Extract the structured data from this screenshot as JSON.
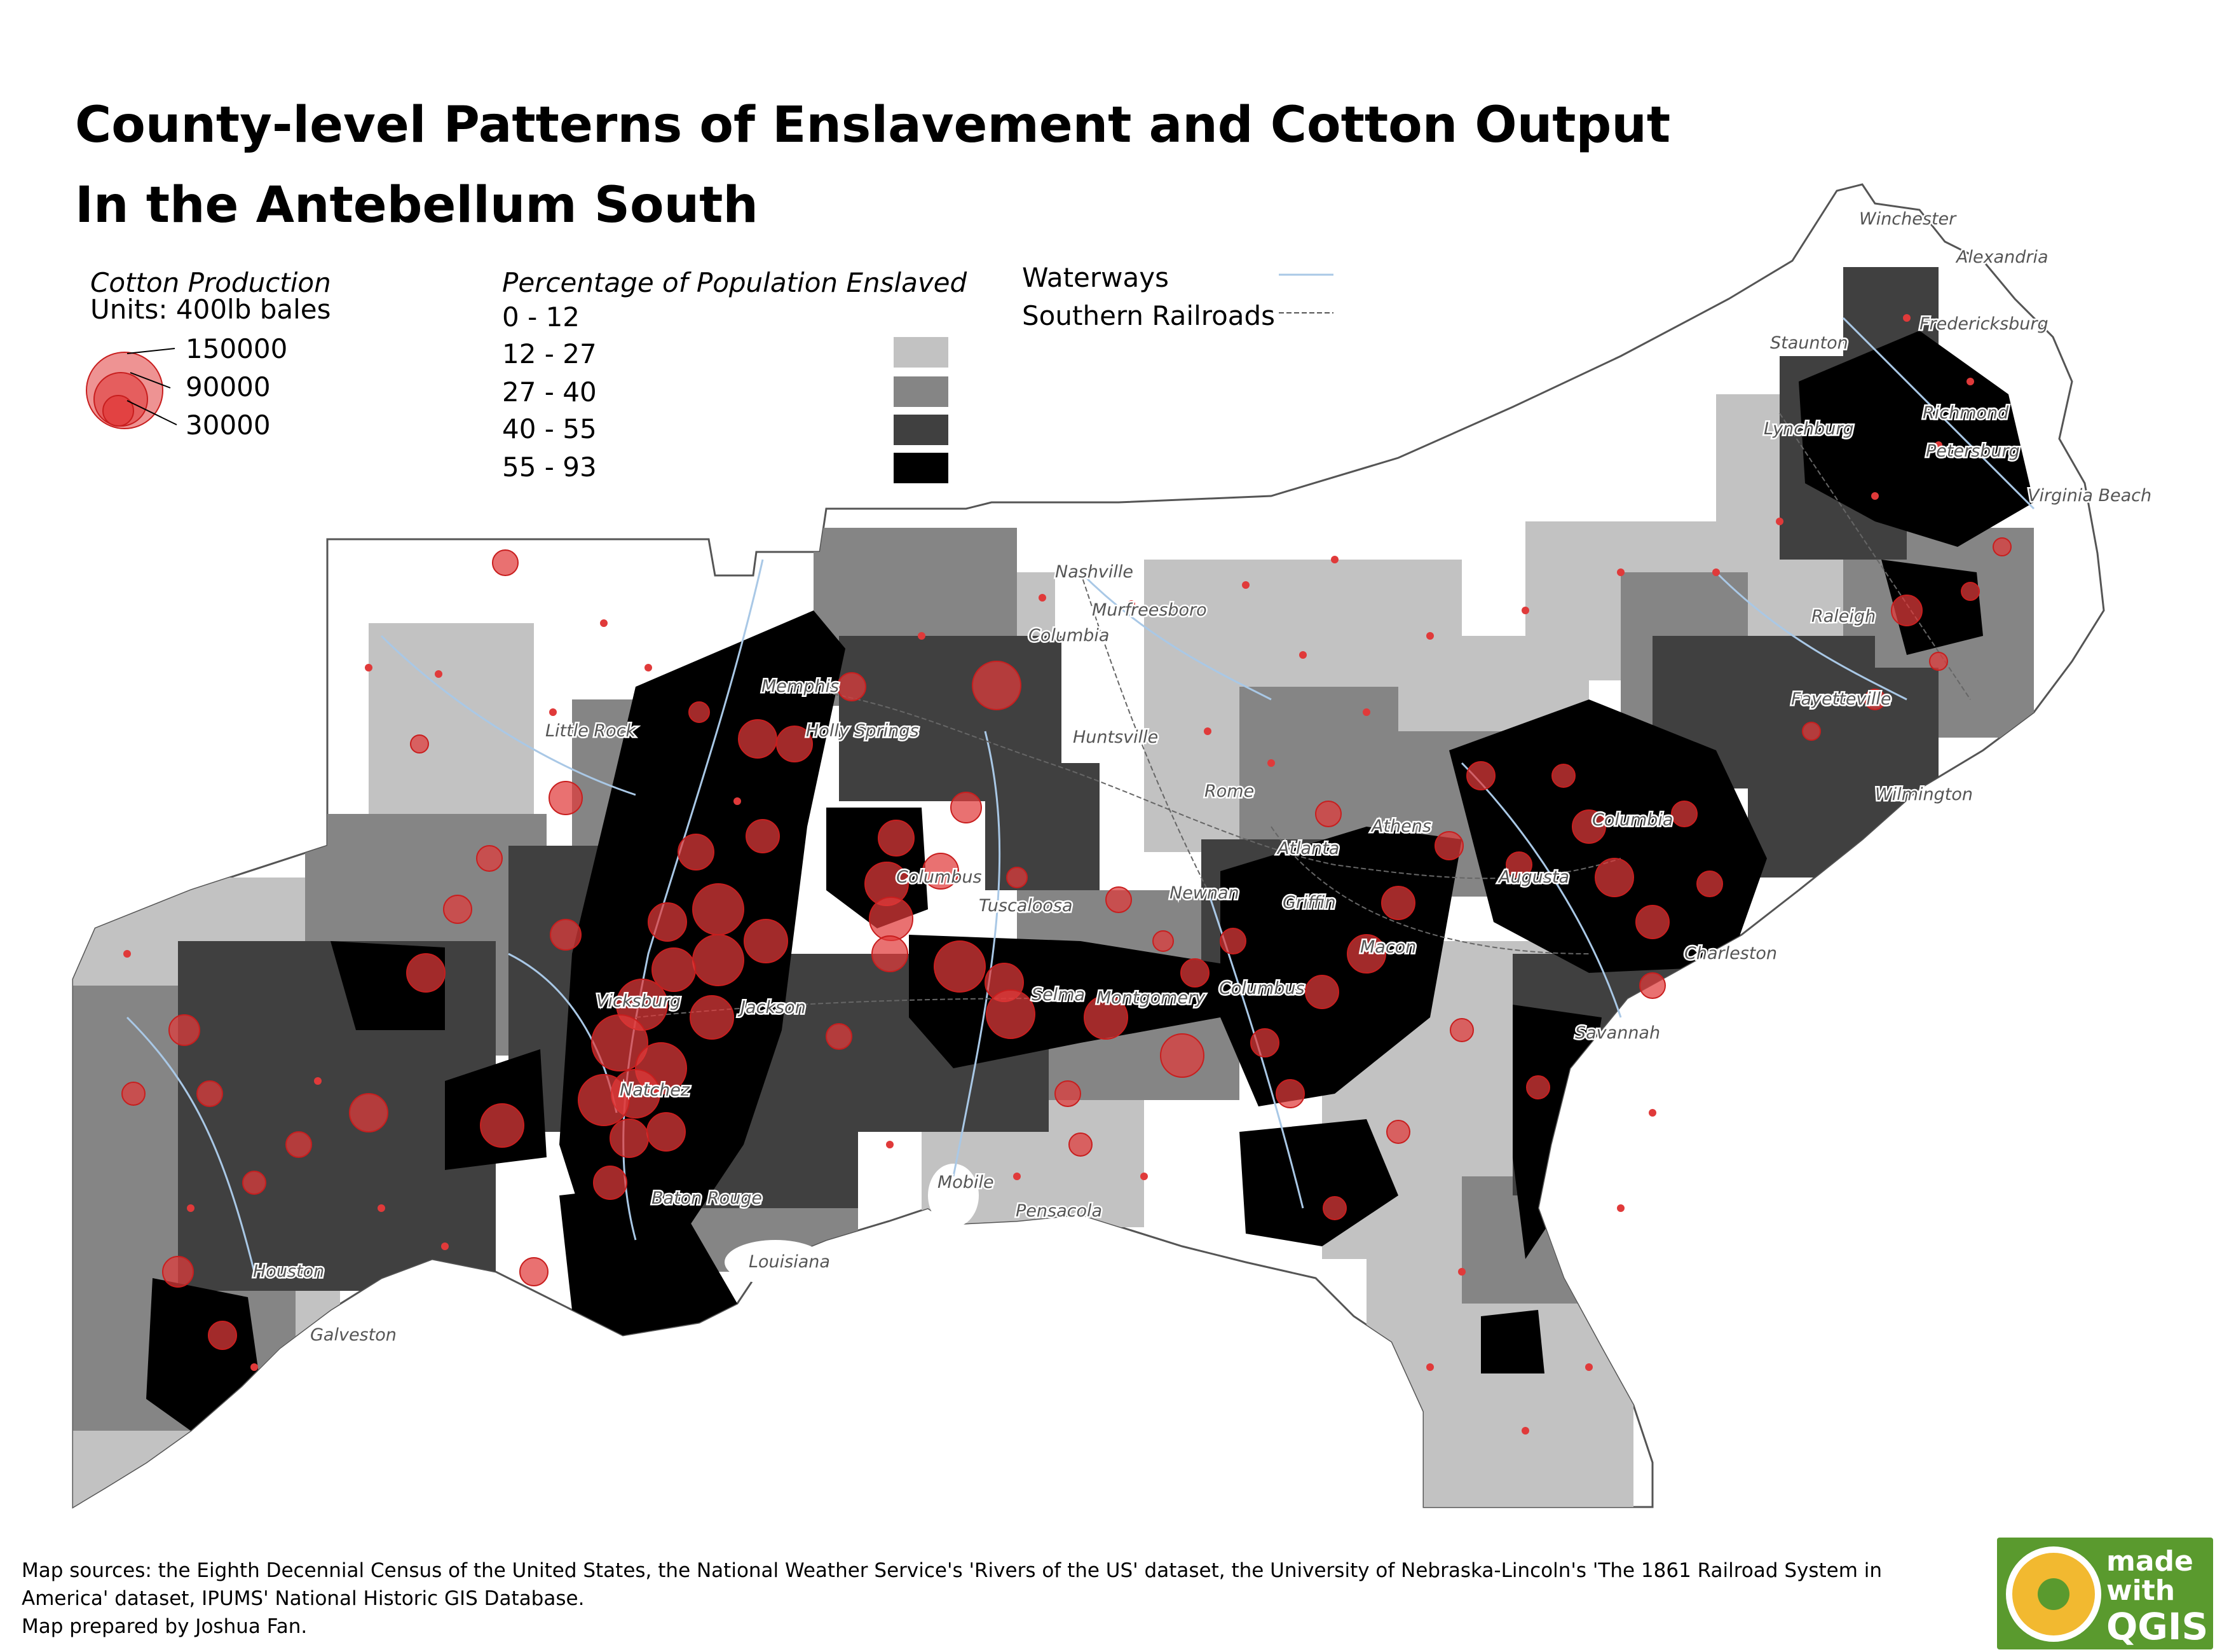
{
  "title_line1": "County-level Patterns of Enslavement and Cotton Output",
  "title_line2": "In the Antebellum South",
  "legend": {
    "cotton_heading": "Cotton Production",
    "cotton_units": "Units: 400lb bales",
    "cotton_sizes": [
      "150000",
      "90000",
      "30000"
    ],
    "enslaved_heading": "Percentage of Population Enslaved",
    "enslaved_classes": [
      {
        "label": "0 - 12",
        "color": "#ffffff"
      },
      {
        "label": "12 - 27",
        "color": "#c2c2c2"
      },
      {
        "label": "27 - 40",
        "color": "#858585"
      },
      {
        "label": "40 - 55",
        "color": "#404040"
      },
      {
        "label": "55 - 93",
        "color": "#000000"
      }
    ],
    "waterways_label": "Waterways",
    "waterways_color": "#a9c8e6",
    "railroads_label": "Southern Railroads",
    "circle_color": "#e03a3a"
  },
  "cities": [
    "Winchester",
    "Alexandria",
    "Staunton",
    "Fredericksburg",
    "Lynchburg",
    "Richmond",
    "Petersburg",
    "Virginia Beach",
    "Nashville",
    "Murfreesboro",
    "Columbia",
    "Raleigh",
    "Memphis",
    "Fayetteville",
    "Little Rock",
    "Holly Springs",
    "Huntsville",
    "Wilmington",
    "Rome",
    "Athens",
    "Columbia",
    "Atlanta",
    "Columbus",
    "Newnan",
    "Griffin",
    "Augusta",
    "Tuscaloosa",
    "Macon",
    "Charleston",
    "Columbus",
    "Vicksburg",
    "Jackson",
    "Selma",
    "Montgomery",
    "Savannah",
    "Natchez",
    "Mobile",
    "Baton Rouge",
    "Pensacola",
    "Louisiana",
    "Houston",
    "Galveston"
  ],
  "sources": "Map sources: the Eighth Decennial Census of the United States, the National Weather Service's 'Rivers of the US' dataset, the University of Nebraska-Lincoln's 'The 1861 Railroad System in America' dataset, IPUMS' National Historic GIS Database.",
  "credit": "Map prepared by Joshua Fan.",
  "logo": {
    "made": "made",
    "with": "with",
    "qgis": "QGIS"
  }
}
